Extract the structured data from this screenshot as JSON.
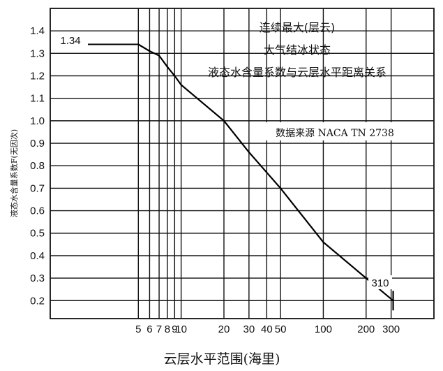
{
  "chart_data": {
    "type": "line",
    "title_lines": [
      "连续最大(层云)",
      "大气结冰状态",
      "液态水含量系数与云层水平距离关系"
    ],
    "source_note": "数据来源 NACA TN 2738",
    "xlabel": "云层水平范围(海里)",
    "ylabel": "液态水含量系数F(无因次)",
    "x_scale": "log",
    "xlim": [
      1.2,
      600
    ],
    "ylim": [
      0.12,
      1.5
    ],
    "x_ticks": [
      5,
      6,
      7,
      8,
      9,
      10,
      20,
      30,
      40,
      50,
      100,
      200,
      300
    ],
    "x_tick_labels": [
      "5",
      "6",
      "7",
      "8",
      "9",
      "10",
      "20",
      "30",
      "40",
      "50",
      "100",
      "200",
      "300"
    ],
    "y_ticks": [
      0.2,
      0.3,
      0.4,
      0.5,
      0.6,
      0.7,
      0.8,
      0.9,
      1.0,
      1.1,
      1.2,
      1.3,
      1.4
    ],
    "y_tick_labels": [
      "0.2",
      "0.3",
      "0.4",
      "0.5",
      "0.6",
      "0.7",
      "0.8",
      "0.9",
      "1.0",
      "1.1",
      "1.2",
      "1.3",
      "1.4"
    ],
    "series": [
      {
        "values_x": [
          5,
          6,
          7,
          8,
          9,
          10,
          20,
          30,
          50,
          100,
          200,
          310
        ],
        "values_y": [
          1.34,
          1.31,
          1.29,
          1.24,
          1.2,
          1.16,
          1.0,
          0.86,
          0.7,
          0.46,
          0.3,
          0.2
        ]
      }
    ],
    "annotations": [
      {
        "text": "1.34",
        "x": 5,
        "y": 1.34
      },
      {
        "text": "310",
        "x": 310,
        "y": 0.2
      }
    ]
  }
}
